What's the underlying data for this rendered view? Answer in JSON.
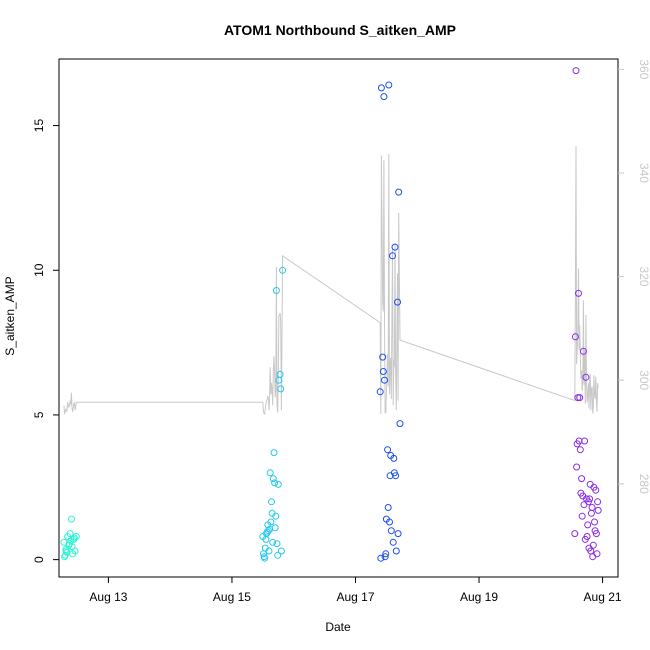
{
  "chart_data": {
    "type": "scatter",
    "title": "ATOM1 Northbound S_aitken_AMP",
    "xlabel": "Date",
    "ylabel": "S_aitken_AMP",
    "xlim": [
      12.2,
      21.25
    ],
    "ylim": [
      -0.6,
      17.3
    ],
    "y2lim": [
      262,
      362
    ],
    "x_ticks": [
      {
        "value": 13,
        "label": "Aug 13"
      },
      {
        "value": 15,
        "label": "Aug 15"
      },
      {
        "value": 17,
        "label": "Aug 17"
      },
      {
        "value": 19,
        "label": "Aug 19"
      },
      {
        "value": 21,
        "label": "Aug 21"
      }
    ],
    "y_ticks": [
      {
        "value": 0,
        "label": "0"
      },
      {
        "value": 5,
        "label": "5"
      },
      {
        "value": 10,
        "label": "10"
      },
      {
        "value": 15,
        "label": "15"
      }
    ],
    "y2_ticks": [
      {
        "value": 280,
        "label": "280"
      },
      {
        "value": 300,
        "label": "300"
      },
      {
        "value": 320,
        "label": "320"
      },
      {
        "value": 340,
        "label": "340"
      },
      {
        "value": 360,
        "label": "360"
      }
    ],
    "grid": false,
    "legend": "none",
    "line_color": "#c8c8c8",
    "series": [
      {
        "color": "#2ef3d3",
        "x": [
          12.28,
          12.3,
          12.32,
          12.34,
          12.36,
          12.38,
          12.4,
          12.42,
          12.44,
          12.46,
          12.48,
          12.29,
          12.33,
          12.37,
          12.41,
          12.45,
          12.31,
          12.39
        ],
        "y": [
          0.6,
          0.15,
          0.3,
          0.8,
          0.5,
          0.9,
          1.4,
          0.2,
          0.7,
          0.3,
          0.8,
          0.1,
          0.25,
          0.55,
          0.45,
          0.75,
          0.35,
          0.65
        ]
      },
      {
        "color": "#24c8f0",
        "x": [
          15.5,
          15.52,
          15.54,
          15.56,
          15.58,
          15.6,
          15.62,
          15.64,
          15.66,
          15.68,
          15.7,
          15.72,
          15.74,
          15.76,
          15.78,
          15.8,
          15.82,
          15.51,
          15.55,
          15.59,
          15.63,
          15.67,
          15.71,
          15.75,
          15.79,
          15.53,
          15.57,
          15.61,
          15.65,
          15.69,
          15.73
        ],
        "y": [
          0.8,
          0.1,
          0.4,
          0.9,
          1.2,
          0.3,
          3.0,
          2.0,
          0.6,
          3.7,
          1.1,
          9.3,
          0.15,
          6.2,
          6.4,
          0.3,
          10.0,
          0.2,
          0.7,
          1.0,
          1.3,
          2.8,
          1.5,
          2.6,
          5.9,
          0.05,
          0.95,
          1.05,
          1.6,
          2.65,
          0.55
        ]
      },
      {
        "color": "#1d4ef0",
        "x": [
          17.4,
          17.42,
          17.44,
          17.46,
          17.48,
          17.5,
          17.52,
          17.54,
          17.56,
          17.58,
          17.6,
          17.62,
          17.64,
          17.66,
          17.68,
          17.7,
          17.72,
          17.41,
          17.45,
          17.49,
          17.53,
          17.57,
          17.61,
          17.65,
          17.69,
          17.47,
          17.55,
          17.63
        ],
        "y": [
          5.8,
          16.3,
          7.0,
          16.0,
          0.1,
          1.4,
          3.8,
          16.4,
          2.9,
          1.0,
          10.5,
          3.5,
          10.8,
          0.3,
          8.9,
          12.7,
          4.7,
          0.05,
          6.5,
          0.2,
          1.8,
          3.6,
          0.6,
          2.9,
          0.9,
          6.2,
          1.3,
          3.0
        ]
      },
      {
        "color": "#8a2ee6",
        "x": [
          20.55,
          20.57,
          20.59,
          20.61,
          20.63,
          20.65,
          20.67,
          20.69,
          20.71,
          20.73,
          20.75,
          20.77,
          20.79,
          20.81,
          20.83,
          20.85,
          20.87,
          20.89,
          20.91,
          20.93,
          20.56,
          20.6,
          20.64,
          20.68,
          20.72,
          20.76,
          20.8,
          20.84,
          20.88,
          20.92,
          20.58,
          20.62,
          20.66,
          20.7,
          20.74,
          20.78,
          20.82,
          20.86,
          20.9
        ],
        "y": [
          0.9,
          16.9,
          4.0,
          9.2,
          5.6,
          2.3,
          1.5,
          7.2,
          4.1,
          6.3,
          0.8,
          2.0,
          2.1,
          0.3,
          1.8,
          0.5,
          1.3,
          2.4,
          0.2,
          1.7,
          7.7,
          5.6,
          3.8,
          2.2,
          0.7,
          1.2,
          2.6,
          0.1,
          1.0,
          2.0,
          3.2,
          4.1,
          2.8,
          1.9,
          2.1,
          0.4,
          1.6,
          2.5,
          0.9
        ]
      }
    ]
  }
}
